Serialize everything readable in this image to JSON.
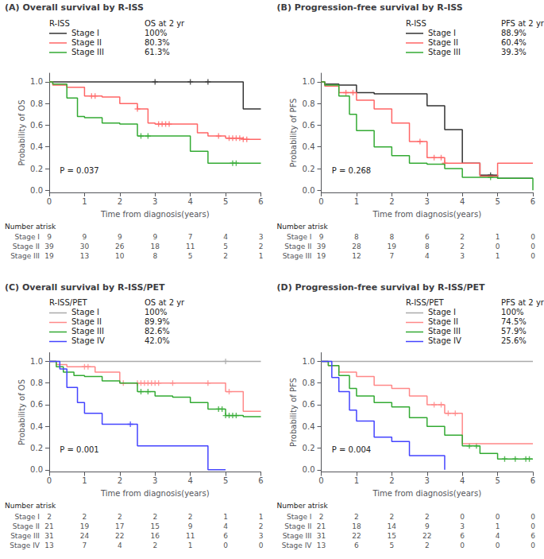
{
  "chart_data": [
    {
      "type": "step",
      "title": "(A) Overall survival by R-ISS",
      "x_label": "Time from diagnosis(years)",
      "y_label": "Probability of OS",
      "xlim": [
        0,
        6
      ],
      "ylim": [
        -0.02,
        1.08
      ],
      "xticks": [
        0,
        1,
        2,
        3,
        4,
        5,
        6
      ],
      "yticks": [
        {
          "value": 0.0,
          "label": "0.0"
        },
        0.2,
        0.4,
        0.6,
        0.8,
        {
          "value": 1.0,
          "label": "1.0"
        }
      ],
      "grid": false,
      "legend": "upper left",
      "legend_titles": [
        "R-ISS",
        "OS at 2 yr"
      ],
      "annotations": [
        "P = 0.037"
      ],
      "series": [
        {
          "name": "Stage I",
          "color": "#333333",
          "summary": "100%",
          "x": [
            0,
            5.0,
            5.5,
            6.0
          ],
          "values": [
            1.0,
            1.0,
            0.75,
            0.75
          ],
          "censor_x": [
            3.0,
            4.0,
            4.5
          ],
          "censor_y": [
            1.0,
            1.0,
            1.0
          ]
        },
        {
          "name": "Stage II",
          "color": "#FF6666",
          "summary": "80.3%",
          "x": [
            0,
            0.1,
            0.5,
            1.0,
            1.5,
            2.0,
            2.5,
            2.8,
            3.0,
            3.5,
            4.0,
            4.2,
            4.5,
            5.0,
            5.5,
            6.0
          ],
          "values": [
            1.0,
            0.97,
            0.95,
            0.87,
            0.86,
            0.8,
            0.75,
            0.62,
            0.61,
            0.61,
            0.61,
            0.53,
            0.5,
            0.48,
            0.47,
            0.47
          ],
          "censor_x": [
            1.2,
            1.3,
            2.5,
            3.1,
            3.2,
            3.3,
            3.4,
            4.8,
            5.1,
            5.2,
            5.3,
            5.4,
            5.5,
            5.6
          ],
          "censor_y": [
            0.87,
            0.87,
            0.75,
            0.61,
            0.61,
            0.61,
            0.61,
            0.5,
            0.48,
            0.48,
            0.48,
            0.48,
            0.47,
            0.47
          ]
        },
        {
          "name": "Stage III",
          "color": "#33AA33",
          "summary": "61.3%",
          "x": [
            0,
            0.1,
            0.5,
            0.8,
            1.0,
            1.5,
            2.0,
            2.5,
            3.0,
            3.5,
            4.0,
            4.5,
            5.0,
            5.5,
            6.0
          ],
          "values": [
            1.0,
            0.98,
            0.85,
            0.68,
            0.67,
            0.62,
            0.61,
            0.5,
            0.5,
            0.5,
            0.36,
            0.25,
            0.25,
            0.25,
            0.25
          ],
          "censor_x": [
            2.6,
            2.8,
            5.2,
            5.3
          ],
          "censor_y": [
            0.5,
            0.5,
            0.25,
            0.25
          ]
        }
      ],
      "atrisk": {
        "title": "Number atrisk",
        "times": [
          0,
          1,
          2,
          3,
          4,
          5,
          6
        ],
        "rows": [
          {
            "label": "Stage I",
            "values": [
              9,
              9,
              9,
              9,
              7,
              4,
              3
            ]
          },
          {
            "label": "Stage II",
            "values": [
              39,
              30,
              26,
              18,
              11,
              5,
              2
            ]
          },
          {
            "label": "Stage III",
            "values": [
              19,
              13,
              10,
              8,
              5,
              2,
              1
            ]
          }
        ]
      }
    },
    {
      "type": "step",
      "title": "(B) Progression-free survival by R-ISS",
      "x_label": "Time from diagnosis(years)",
      "y_label": "Probability of PFS",
      "xlim": [
        0,
        6
      ],
      "ylim": [
        -0.02,
        1.08
      ],
      "xticks": [
        0,
        1,
        2,
        3,
        4,
        5,
        6
      ],
      "yticks": [
        {
          "value": 0.0,
          "label": "0.0"
        },
        0.2,
        0.4,
        0.6,
        0.8,
        {
          "value": 1.0,
          "label": "1.0"
        }
      ],
      "grid": false,
      "legend": "upper right",
      "legend_titles": [
        "R-ISS",
        "PFS at 2 yr"
      ],
      "annotations": [
        "P = 0.268"
      ],
      "series": [
        {
          "name": "Stage I",
          "color": "#333333",
          "summary": "88.9%",
          "x": [
            0,
            0.1,
            0.5,
            1.0,
            1.5,
            2.0,
            2.5,
            3.0,
            3.5,
            4.0,
            4.5,
            5.0,
            5.5,
            6.0
          ],
          "values": [
            1.0,
            0.98,
            0.97,
            0.9,
            0.89,
            0.89,
            0.89,
            0.78,
            0.56,
            0.25,
            0.14,
            0.11,
            0.11,
            0.11
          ],
          "censor_x": [
            4.8
          ],
          "censor_y": [
            0.14
          ]
        },
        {
          "name": "Stage II",
          "color": "#FF6666",
          "summary": "60.4%",
          "x": [
            0,
            0.1,
            0.5,
            1.0,
            1.5,
            2.0,
            2.5,
            3.0,
            3.5,
            4.0,
            4.5,
            5.0,
            5.5,
            6.0
          ],
          "values": [
            1.0,
            0.96,
            0.9,
            0.83,
            0.75,
            0.62,
            0.45,
            0.3,
            0.25,
            0.25,
            0.13,
            0.25,
            0.25,
            0.25
          ],
          "censor_x": [
            0.7,
            0.9,
            2.8,
            3.2,
            3.4,
            3.5
          ],
          "censor_y": [
            0.9,
            0.9,
            0.45,
            0.3,
            0.3,
            0.25
          ]
        },
        {
          "name": "Stage III",
          "color": "#33AA33",
          "summary": "39.3%",
          "x": [
            0,
            0.1,
            0.5,
            0.8,
            1.0,
            1.5,
            2.0,
            2.5,
            3.0,
            3.5,
            4.0,
            4.5,
            5.0,
            5.5,
            6.0
          ],
          "values": [
            1.0,
            0.97,
            0.87,
            0.7,
            0.55,
            0.4,
            0.32,
            0.25,
            0.24,
            0.2,
            0.12,
            0.12,
            0.11,
            0.11,
            0.0
          ],
          "censor_x": [
            4.8
          ],
          "censor_y": [
            0.12
          ]
        }
      ],
      "atrisk": {
        "title": "Number atrisk",
        "times": [
          0,
          1,
          2,
          3,
          4,
          5,
          6
        ],
        "rows": [
          {
            "label": "Stage I",
            "values": [
              9,
              8,
              8,
              6,
              2,
              1,
              0
            ]
          },
          {
            "label": "Stage II",
            "values": [
              39,
              28,
              19,
              8,
              2,
              0,
              0
            ]
          },
          {
            "label": "Stage III",
            "values": [
              19,
              12,
              7,
              4,
              3,
              1,
              0
            ]
          }
        ]
      }
    },
    {
      "type": "step",
      "title": "(C) Overall survival by R-ISS/PET",
      "x_label": "Time from diagnosis(years)",
      "y_label": "Probability of OS",
      "xlim": [
        0,
        6
      ],
      "ylim": [
        -0.02,
        1.08
      ],
      "xticks": [
        0,
        1,
        2,
        3,
        4,
        5,
        6
      ],
      "yticks": [
        {
          "value": 0.0,
          "label": "0.0"
        },
        0.2,
        0.4,
        0.6,
        0.8,
        {
          "value": 1.0,
          "label": "1.0"
        }
      ],
      "grid": false,
      "legend": "upper left",
      "legend_titles": [
        "R-ISS/PET",
        "OS at 2 yr"
      ],
      "annotations": [
        "P = 0.001"
      ],
      "series": [
        {
          "name": "Stage I",
          "color": "#AAAAAA",
          "summary": "100%",
          "x": [
            0,
            5.8,
            6.0
          ],
          "values": [
            1.0,
            1.0,
            1.0
          ],
          "censor_x": [
            5.0
          ],
          "censor_y": [
            1.0
          ]
        },
        {
          "name": "Stage II",
          "color": "#FF8888",
          "summary": "89.9%",
          "x": [
            0,
            0.2,
            0.5,
            1.0,
            1.3,
            1.5,
            2.0,
            2.5,
            3.0,
            3.5,
            4.0,
            4.5,
            5.0,
            5.2,
            5.5,
            6.0
          ],
          "values": [
            1.0,
            0.97,
            0.95,
            0.95,
            0.9,
            0.9,
            0.8,
            0.8,
            0.8,
            0.8,
            0.8,
            0.8,
            0.72,
            0.72,
            0.54,
            0.54
          ],
          "censor_x": [
            1.0,
            1.1,
            2.1,
            2.5,
            2.6,
            2.7,
            2.8,
            2.9,
            3.0,
            3.1,
            3.5,
            4.5,
            5.1
          ],
          "censor_y": [
            0.95,
            0.95,
            0.8,
            0.8,
            0.8,
            0.8,
            0.8,
            0.8,
            0.8,
            0.8,
            0.8,
            0.8,
            0.72
          ]
        },
        {
          "name": "Stage III",
          "color": "#33AA33",
          "summary": "82.6%",
          "x": [
            0,
            0.2,
            0.4,
            0.7,
            1.0,
            1.5,
            2.0,
            2.5,
            3.0,
            3.5,
            4.0,
            4.5,
            5.0,
            5.5,
            6.0
          ],
          "values": [
            1.0,
            0.95,
            0.9,
            0.87,
            0.86,
            0.82,
            0.8,
            0.72,
            0.68,
            0.67,
            0.62,
            0.56,
            0.5,
            0.49,
            0.49
          ],
          "censor_x": [
            2.6,
            2.8,
            4.8,
            4.9,
            5.0,
            5.1,
            5.2,
            5.3
          ],
          "censor_y": [
            0.72,
            0.72,
            0.56,
            0.56,
            0.5,
            0.5,
            0.5,
            0.5
          ]
        },
        {
          "name": "Stage IV",
          "color": "#4444FF",
          "summary": "42.0%",
          "x": [
            0,
            0.3,
            0.5,
            0.8,
            1.0,
            1.5,
            2.0,
            2.5,
            3.0,
            3.5,
            4.0,
            4.5,
            5.0
          ],
          "values": [
            1.0,
            0.93,
            0.76,
            0.62,
            0.52,
            0.42,
            0.42,
            0.22,
            0.22,
            0.22,
            0.22,
            0.0,
            0.0
          ],
          "censor_x": [
            2.3
          ],
          "censor_y": [
            0.42
          ]
        }
      ],
      "atrisk": {
        "title": "Number atrisk",
        "times": [
          0,
          1,
          2,
          3,
          4,
          5,
          6
        ],
        "rows": [
          {
            "label": "Stage I",
            "values": [
              2,
              2,
              2,
              2,
              2,
              1,
              1
            ]
          },
          {
            "label": "Stage II",
            "values": [
              21,
              19,
              17,
              15,
              9,
              4,
              2
            ]
          },
          {
            "label": "Stage III",
            "values": [
              31,
              24,
              22,
              16,
              11,
              6,
              3
            ]
          },
          {
            "label": "Stage IV",
            "values": [
              13,
              7,
              4,
              2,
              1,
              0,
              0
            ]
          }
        ]
      }
    },
    {
      "type": "step",
      "title": "(D) Progression-free survival by R-ISS/PET",
      "x_label": "Time from diagnosis(years)",
      "y_label": "Probability of PFS",
      "xlim": [
        0,
        6
      ],
      "ylim": [
        -0.02,
        1.08
      ],
      "xticks": [
        0,
        1,
        2,
        3,
        4,
        5,
        6
      ],
      "yticks": [
        {
          "value": 0.0,
          "label": "0.0"
        },
        0.2,
        0.4,
        0.6,
        0.8,
        {
          "value": 1.0,
          "label": "1.0"
        }
      ],
      "grid": false,
      "legend": "upper right",
      "legend_titles": [
        "R-ISS/PET",
        "PFS at 2 yr"
      ],
      "annotations": [
        "P = 0.004"
      ],
      "series": [
        {
          "name": "Stage I",
          "color": "#AAAAAA",
          "summary": "100%",
          "x": [
            0,
            2.0,
            3.0,
            3.5,
            6.0
          ],
          "values": [
            1.0,
            1.0,
            1.0,
            1.0,
            1.0
          ],
          "censor_x": [],
          "censor_y": []
        },
        {
          "name": "Stage II",
          "color": "#FF8888",
          "summary": "74.5%",
          "x": [
            0,
            0.2,
            0.5,
            1.0,
            1.5,
            2.0,
            2.5,
            3.0,
            3.5,
            4.0,
            4.5,
            5.0,
            5.5,
            6.0
          ],
          "values": [
            1.0,
            0.96,
            0.9,
            0.86,
            0.78,
            0.75,
            0.68,
            0.6,
            0.52,
            0.24,
            0.24,
            0.24,
            0.24,
            0.24
          ],
          "censor_x": [
            3.2,
            3.4,
            3.6,
            3.8
          ],
          "censor_y": [
            0.6,
            0.6,
            0.52,
            0.52
          ]
        },
        {
          "name": "Stage III",
          "color": "#33AA33",
          "summary": "57.9%",
          "x": [
            0,
            0.2,
            0.5,
            0.8,
            1.0,
            1.5,
            2.0,
            2.5,
            3.0,
            3.5,
            4.0,
            4.5,
            5.0,
            5.5,
            6.0
          ],
          "values": [
            1.0,
            0.96,
            0.87,
            0.75,
            0.68,
            0.62,
            0.58,
            0.48,
            0.4,
            0.32,
            0.22,
            0.15,
            0.1,
            0.1,
            0.1
          ],
          "censor_x": [
            4.2,
            4.4,
            5.2,
            5.5,
            5.8,
            5.9
          ],
          "censor_y": [
            0.22,
            0.22,
            0.1,
            0.1,
            0.1,
            0.1
          ]
        },
        {
          "name": "Stage IV",
          "color": "#4444FF",
          "summary": "25.6%",
          "x": [
            0,
            0.3,
            0.5,
            0.8,
            1.0,
            1.5,
            2.0,
            2.5,
            3.0,
            3.5
          ],
          "values": [
            1.0,
            0.85,
            0.72,
            0.55,
            0.45,
            0.3,
            0.26,
            0.13,
            0.13,
            0.0
          ],
          "censor_x": [],
          "censor_y": []
        }
      ],
      "atrisk": {
        "title": "Number atrisk",
        "times": [
          0,
          1,
          2,
          3,
          4,
          5,
          6
        ],
        "rows": [
          {
            "label": "Stage I",
            "values": [
              2,
              2,
              2,
              2,
              0,
              0,
              0
            ]
          },
          {
            "label": "Stage II",
            "values": [
              21,
              18,
              14,
              9,
              3,
              1,
              0
            ]
          },
          {
            "label": "Stage III",
            "values": [
              31,
              22,
              15,
              22,
              6,
              4,
              6
            ]
          },
          {
            "label": "Stage IV",
            "values": [
              13,
              6,
              5,
              2,
              0,
              0,
              0
            ]
          }
        ]
      }
    }
  ]
}
